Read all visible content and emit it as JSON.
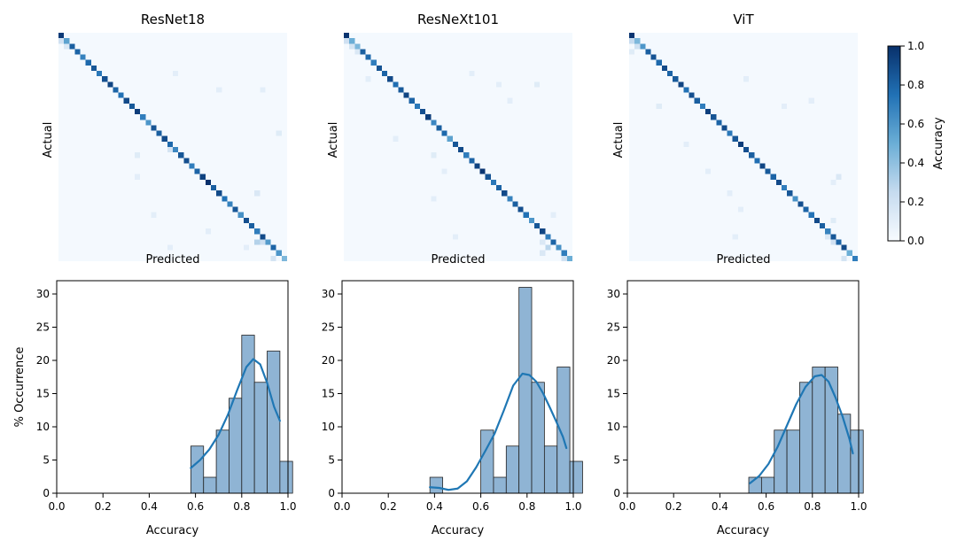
{
  "chart_data": [
    {
      "type": "heatmap",
      "title": "ResNet18",
      "xlabel": "Predicted",
      "ylabel": "Actual",
      "size": 42,
      "diagonal": [
        0.96,
        0.55,
        0.82,
        0.8,
        0.68,
        0.78,
        0.85,
        0.72,
        0.88,
        0.92,
        0.8,
        0.75,
        0.9,
        0.84,
        0.95,
        0.7,
        0.6,
        0.86,
        0.82,
        0.9,
        0.78,
        0.66,
        0.85,
        0.88,
        0.7,
        0.8,
        0.93,
        1.0,
        0.82,
        0.9,
        0.75,
        0.68,
        0.85,
        0.62,
        0.88,
        0.82,
        0.7,
        0.9,
        0.58,
        0.8,
        0.6,
        0.45
      ],
      "offdiag": [
        [
          1,
          0,
          0.2
        ],
        [
          2,
          1,
          0.15
        ],
        [
          21,
          20,
          0.18
        ],
        [
          38,
          36,
          0.3
        ],
        [
          38,
          37,
          0.22
        ],
        [
          22,
          14,
          0.12
        ],
        [
          7,
          21,
          0.1
        ],
        [
          10,
          29,
          0.1
        ],
        [
          10,
          37,
          0.1
        ],
        [
          41,
          39,
          0.18
        ],
        [
          26,
          14,
          0.1
        ],
        [
          33,
          17,
          0.1
        ],
        [
          39,
          34,
          0.1
        ],
        [
          39,
          20,
          0.1
        ],
        [
          18,
          40,
          0.12
        ],
        [
          29,
          36,
          0.15
        ],
        [
          36,
          27,
          0.1
        ]
      ],
      "colorbar": {
        "label": "Accuracy",
        "ticks": [
          "0.0",
          "0.2",
          "0.4",
          "0.6",
          "0.8",
          "1.0"
        ]
      }
    },
    {
      "type": "heatmap",
      "title": "ResNeXt101",
      "xlabel": "Predicted",
      "ylabel": "Actual",
      "size": 42,
      "diagonal": [
        0.98,
        0.5,
        0.45,
        0.82,
        0.78,
        0.7,
        0.86,
        0.8,
        0.9,
        0.76,
        0.84,
        0.92,
        0.8,
        0.72,
        0.88,
        0.95,
        0.66,
        0.82,
        0.78,
        0.55,
        0.85,
        0.9,
        0.7,
        0.8,
        0.93,
        0.98,
        0.86,
        0.72,
        0.8,
        0.9,
        0.68,
        0.82,
        0.88,
        0.75,
        0.6,
        0.85,
        0.92,
        0.7,
        0.8,
        0.62,
        0.7,
        0.5
      ],
      "offdiag": [
        [
          1,
          0,
          0.2
        ],
        [
          2,
          1,
          0.18
        ],
        [
          3,
          2,
          0.15
        ],
        [
          8,
          4,
          0.1
        ],
        [
          39,
          37,
          0.28
        ],
        [
          38,
          36,
          0.15
        ],
        [
          41,
          40,
          0.2
        ],
        [
          22,
          16,
          0.12
        ],
        [
          12,
          30,
          0.1
        ],
        [
          7,
          23,
          0.1
        ],
        [
          9,
          28,
          0.1
        ],
        [
          9,
          35,
          0.12
        ],
        [
          40,
          36,
          0.15
        ],
        [
          19,
          9,
          0.1
        ],
        [
          30,
          16,
          0.1
        ],
        [
          37,
          20,
          0.1
        ],
        [
          25,
          18,
          0.1
        ],
        [
          33,
          38,
          0.1
        ]
      ],
      "colorbar": {
        "label": "Accuracy",
        "ticks": [
          "0.0",
          "0.2",
          "0.4",
          "0.6",
          "0.8",
          "1.0"
        ]
      }
    },
    {
      "type": "heatmap",
      "title": "ViT",
      "xlabel": "Predicted",
      "ylabel": "Actual",
      "size": 42,
      "diagonal": [
        0.98,
        0.45,
        0.6,
        0.82,
        0.86,
        0.78,
        0.9,
        0.8,
        0.84,
        0.92,
        0.75,
        0.88,
        0.82,
        0.7,
        0.94,
        0.86,
        0.8,
        0.9,
        0.72,
        0.85,
        0.95,
        0.88,
        0.82,
        0.76,
        0.92,
        0.84,
        0.8,
        0.9,
        0.7,
        0.85,
        0.62,
        0.88,
        0.8,
        0.74,
        0.9,
        0.82,
        0.68,
        0.85,
        0.8,
        0.9,
        0.5,
        0.7
      ],
      "offdiag": [
        [
          1,
          0,
          0.25
        ],
        [
          2,
          1,
          0.2
        ],
        [
          3,
          0,
          0.12
        ],
        [
          38,
          37,
          0.2
        ],
        [
          37,
          36,
          0.15
        ],
        [
          41,
          39,
          0.18
        ],
        [
          13,
          5,
          0.12
        ],
        [
          20,
          10,
          0.1
        ],
        [
          8,
          21,
          0.1
        ],
        [
          13,
          28,
          0.1
        ],
        [
          25,
          14,
          0.1
        ],
        [
          29,
          18,
          0.1
        ],
        [
          32,
          20,
          0.1
        ],
        [
          26,
          38,
          0.15
        ],
        [
          27,
          37,
          0.1
        ],
        [
          37,
          19,
          0.1
        ],
        [
          12,
          33,
          0.1
        ],
        [
          34,
          37,
          0.12
        ]
      ],
      "colorbar": {
        "label": "Accuracy",
        "ticks": [
          "0.0",
          "0.2",
          "0.4",
          "0.6",
          "0.8",
          "1.0"
        ]
      }
    },
    {
      "type": "bar",
      "subtype": "histogram",
      "xlabel": "Accuracy",
      "ylabel": "% Occurrence",
      "xlim": [
        0,
        1
      ],
      "ylim": [
        0,
        32
      ],
      "xticks": [
        "0.0",
        "0.2",
        "0.4",
        "0.6",
        "0.8",
        "1.0"
      ],
      "yticks": [
        "0",
        "5",
        "10",
        "15",
        "20",
        "25",
        "30"
      ],
      "bin_width": 0.055,
      "bins": [
        [
          0.58,
          7.1
        ],
        [
          0.635,
          2.4
        ],
        [
          0.69,
          9.5
        ],
        [
          0.745,
          14.3
        ],
        [
          0.8,
          23.8
        ],
        [
          0.855,
          16.7
        ],
        [
          0.91,
          21.4
        ],
        [
          0.965,
          4.8
        ]
      ],
      "kde": [
        [
          0.58,
          3.8
        ],
        [
          0.62,
          5.0
        ],
        [
          0.66,
          6.6
        ],
        [
          0.7,
          8.8
        ],
        [
          0.74,
          11.8
        ],
        [
          0.78,
          15.5
        ],
        [
          0.82,
          19.0
        ],
        [
          0.85,
          20.2
        ],
        [
          0.88,
          19.4
        ],
        [
          0.91,
          16.6
        ],
        [
          0.94,
          13.0
        ],
        [
          0.965,
          10.9
        ]
      ]
    },
    {
      "type": "bar",
      "subtype": "histogram",
      "xlabel": "Accuracy",
      "ylabel": "",
      "xlim": [
        0,
        1
      ],
      "ylim": [
        0,
        32
      ],
      "xticks": [
        "0.0",
        "0.2",
        "0.4",
        "0.6",
        "0.8",
        "1.0"
      ],
      "yticks": [
        "0",
        "5",
        "10",
        "15",
        "20",
        "25",
        "30"
      ],
      "bin_width": 0.055,
      "bins": [
        [
          0.38,
          2.4
        ],
        [
          0.435,
          0
        ],
        [
          0.49,
          0
        ],
        [
          0.545,
          0
        ],
        [
          0.6,
          9.5
        ],
        [
          0.655,
          2.4
        ],
        [
          0.71,
          7.1
        ],
        [
          0.765,
          31.0
        ],
        [
          0.82,
          16.7
        ],
        [
          0.875,
          7.1
        ],
        [
          0.93,
          19.0
        ],
        [
          0.985,
          4.8
        ]
      ],
      "kde": [
        [
          0.38,
          0.9
        ],
        [
          0.42,
          0.8
        ],
        [
          0.46,
          0.5
        ],
        [
          0.5,
          0.7
        ],
        [
          0.54,
          1.8
        ],
        [
          0.58,
          3.9
        ],
        [
          0.62,
          6.4
        ],
        [
          0.66,
          9.0
        ],
        [
          0.7,
          12.5
        ],
        [
          0.74,
          16.2
        ],
        [
          0.78,
          18.0
        ],
        [
          0.81,
          17.8
        ],
        [
          0.84,
          16.8
        ],
        [
          0.87,
          15.0
        ],
        [
          0.9,
          12.8
        ],
        [
          0.93,
          10.5
        ],
        [
          0.955,
          8.5
        ],
        [
          0.97,
          6.8
        ]
      ]
    },
    {
      "type": "bar",
      "subtype": "histogram",
      "xlabel": "Accuracy",
      "ylabel": "",
      "xlim": [
        0,
        1
      ],
      "ylim": [
        0,
        32
      ],
      "xticks": [
        "0.0",
        "0.2",
        "0.4",
        "0.6",
        "0.8",
        "1.0"
      ],
      "yticks": [
        "0",
        "5",
        "10",
        "15",
        "20",
        "25",
        "30"
      ],
      "bin_width": 0.055,
      "bins": [
        [
          0.525,
          2.4
        ],
        [
          0.58,
          2.4
        ],
        [
          0.635,
          9.5
        ],
        [
          0.69,
          9.5
        ],
        [
          0.745,
          16.7
        ],
        [
          0.8,
          19.0
        ],
        [
          0.855,
          19.0
        ],
        [
          0.91,
          11.9
        ],
        [
          0.965,
          9.5
        ]
      ],
      "kde": [
        [
          0.53,
          1.5
        ],
        [
          0.57,
          2.6
        ],
        [
          0.61,
          4.4
        ],
        [
          0.65,
          7.0
        ],
        [
          0.69,
          10.2
        ],
        [
          0.73,
          13.4
        ],
        [
          0.77,
          16.0
        ],
        [
          0.81,
          17.6
        ],
        [
          0.84,
          17.8
        ],
        [
          0.87,
          16.8
        ],
        [
          0.9,
          14.4
        ],
        [
          0.93,
          11.6
        ],
        [
          0.96,
          8.2
        ],
        [
          0.975,
          6.0
        ]
      ]
    }
  ]
}
